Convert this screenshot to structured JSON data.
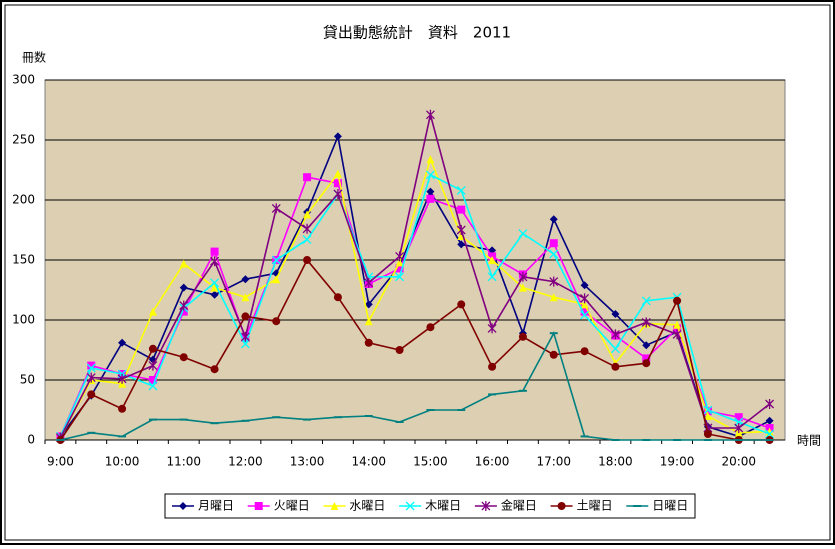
{
  "chart_data": {
    "type": "line",
    "title": "貸出動態統計　資料　2011",
    "y_label": "冊数",
    "x_label": "時間",
    "categories": [
      "9:00",
      null,
      "10:00",
      null,
      "11:00",
      null,
      "12:00",
      null,
      "13:00",
      null,
      "14:00",
      null,
      "15:00",
      null,
      "16:00",
      null,
      "17:00",
      null,
      "18:00",
      null,
      "19:00",
      null,
      "20:00",
      null
    ],
    "ylim": [
      0,
      300
    ],
    "yticks": [
      0,
      50,
      100,
      150,
      200,
      250,
      300
    ],
    "grid": true,
    "legend": "bottom",
    "series": [
      {
        "name": "月曜日",
        "color": "#000080",
        "marker": "diamond",
        "values": [
          3,
          37,
          81,
          67,
          127,
          121,
          134,
          139,
          190,
          253,
          113,
          145,
          207,
          163,
          158,
          89,
          184,
          129,
          105,
          79,
          90,
          11,
          3,
          16
        ]
      },
      {
        "name": "火曜日",
        "color": "#ff00ff",
        "marker": "square",
        "values": [
          3,
          62,
          55,
          50,
          107,
          157,
          85,
          150,
          219,
          214,
          130,
          143,
          201,
          192,
          153,
          138,
          164,
          107,
          87,
          68,
          93,
          24,
          19,
          10
        ]
      },
      {
        "name": "水曜日",
        "color": "#ffff00",
        "marker": "triangle",
        "values": [
          2,
          50,
          47,
          107,
          147,
          127,
          119,
          134,
          188,
          222,
          99,
          148,
          234,
          170,
          150,
          127,
          119,
          113,
          64,
          97,
          96,
          20,
          6,
          7
        ]
      },
      {
        "name": "木曜日",
        "color": "#00ffff",
        "marker": "x",
        "values": [
          3,
          60,
          55,
          45,
          110,
          131,
          80,
          150,
          167,
          205,
          136,
          136,
          221,
          208,
          136,
          172,
          155,
          104,
          76,
          116,
          119,
          25,
          15,
          5
        ]
      },
      {
        "name": "金曜日",
        "color": "#800080",
        "marker": "star",
        "values": [
          2,
          52,
          51,
          62,
          112,
          149,
          86,
          193,
          176,
          205,
          131,
          153,
          271,
          175,
          93,
          136,
          132,
          118,
          88,
          98,
          88,
          10,
          10,
          30
        ]
      },
      {
        "name": "土曜日",
        "color": "#800000",
        "marker": "circle",
        "values": [
          0,
          38,
          26,
          76,
          69,
          59,
          103,
          99,
          150,
          119,
          81,
          75,
          94,
          113,
          61,
          86,
          71,
          74,
          61,
          64,
          116,
          5,
          0,
          0
        ]
      },
      {
        "name": "日曜日",
        "color": "#008080",
        "marker": "dash",
        "values": [
          0,
          6,
          3,
          17,
          17,
          14,
          16,
          19,
          17,
          19,
          20,
          15,
          25,
          25,
          38,
          41,
          89,
          3,
          0,
          0,
          0,
          0,
          0,
          0
        ]
      }
    ]
  }
}
